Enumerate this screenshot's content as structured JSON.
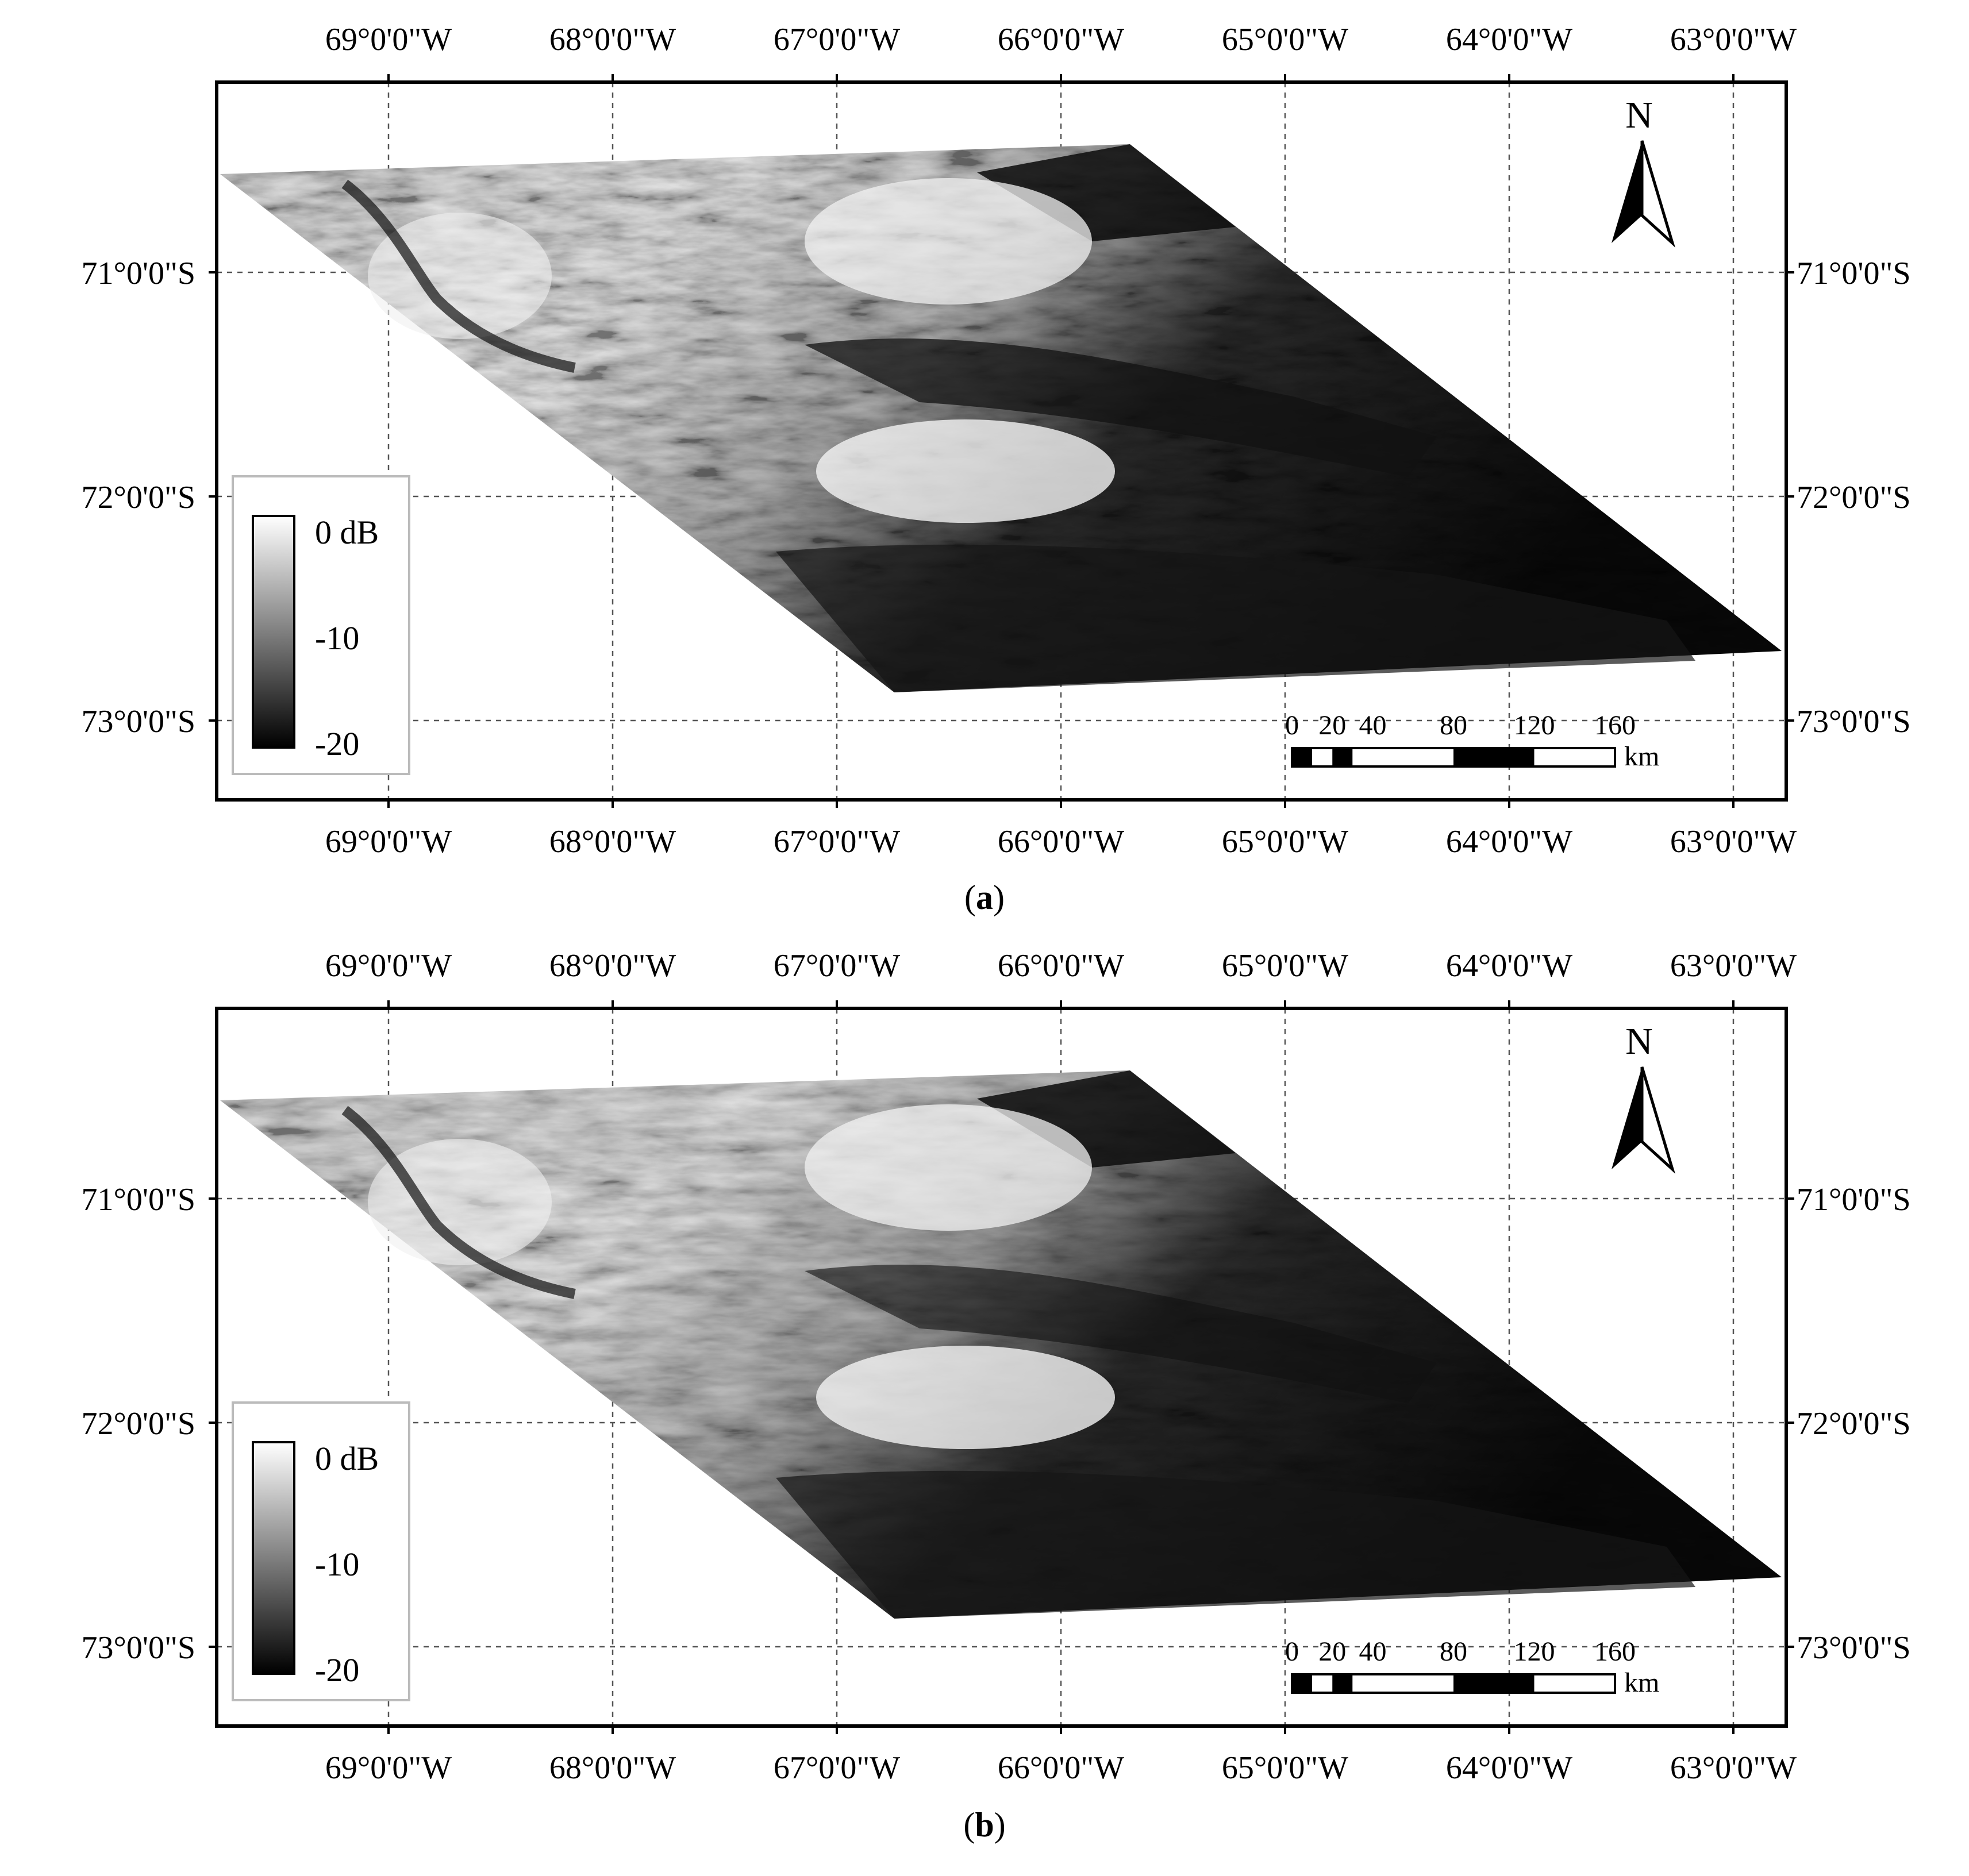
{
  "panels": [
    {
      "caption": "(a)",
      "caption_letter": "a",
      "variant": "a",
      "top_lon_labels": [
        "69°0'0\"W",
        "68°0'0\"W",
        "67°0'0\"W",
        "66°0'0\"W",
        "65°0'0\"W",
        "64°0'0\"W",
        "63°0'0\"W"
      ],
      "bottom_lon_labels": [
        "69°0'0\"W",
        "68°0'0\"W",
        "67°0'0\"W",
        "66°0'0\"W",
        "65°0'0\"W",
        "64°0'0\"W",
        "63°0'0\"W"
      ],
      "left_lat_labels": [
        "71°0'0\"S",
        "72°0'0\"S",
        "73°0'0\"S"
      ],
      "right_lat_labels": [
        "71°0'0\"S",
        "72°0'0\"S",
        "73°0'0\"S"
      ]
    },
    {
      "caption": "(b)",
      "caption_letter": "b",
      "variant": "b",
      "top_lon_labels": [
        "69°0'0\"W",
        "68°0'0\"W",
        "67°0'0\"W",
        "66°0'0\"W",
        "65°0'0\"W",
        "64°0'0\"W",
        "63°0'0\"W"
      ],
      "bottom_lon_labels": [
        "69°0'0\"W",
        "68°0'0\"W",
        "67°0'0\"W",
        "66°0'0\"W",
        "65°0'0\"W",
        "64°0'0\"W",
        "63°0'0\"W"
      ],
      "left_lat_labels": [
        "71°0'0\"S",
        "72°0'0\"S",
        "73°0'0\"S"
      ],
      "right_lat_labels": [
        "71°0'0\"S",
        "72°0'0\"S",
        "73°0'0\"S"
      ]
    }
  ],
  "legend": {
    "labels": [
      "0 dB",
      "-10",
      "-20"
    ],
    "colors": [
      "#ffffff",
      "#000000"
    ]
  },
  "north_arrow": {
    "label": "N",
    "icon": "north-arrow-icon"
  },
  "scale_bar": {
    "ticks": [
      "0",
      "20",
      "40",
      "80",
      "120",
      "160"
    ],
    "tick_values_km": [
      0,
      20,
      40,
      80,
      120,
      160
    ],
    "unit": "km"
  },
  "colors": {
    "frame": "#000000",
    "grid": "#555555",
    "background": "#ffffff"
  }
}
